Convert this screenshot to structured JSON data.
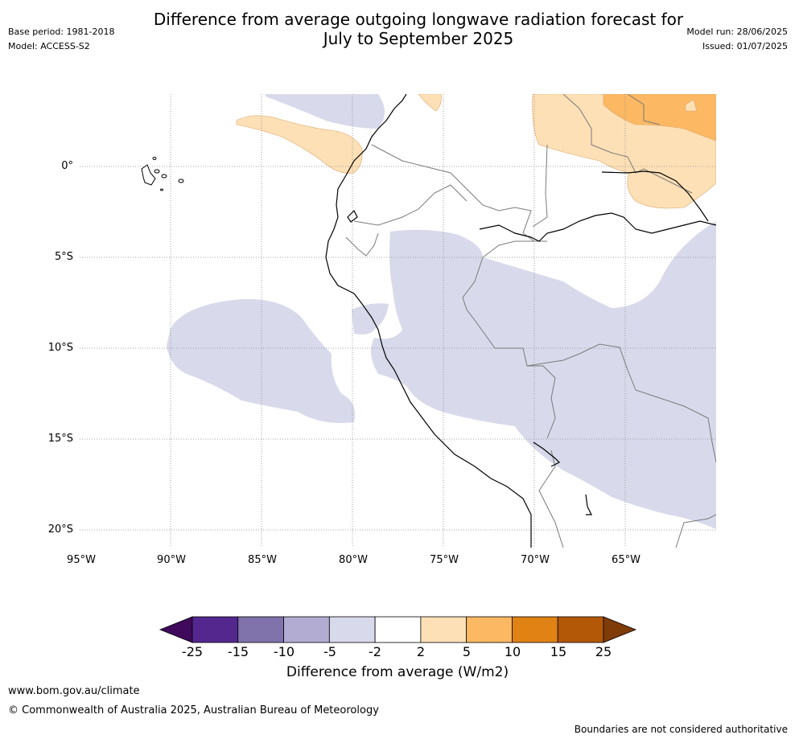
{
  "title": {
    "line1": "Difference from average outgoing longwave radiation forecast for",
    "line2": "July to September 2025"
  },
  "meta_left": {
    "base_period": "Base period: 1981-2018",
    "model": "Model: ACCESS-S2"
  },
  "meta_right": {
    "model_run": "Model run: 28/06/2025",
    "issued": "Issued: 01/07/2025"
  },
  "map": {
    "lat_labels": [
      "0°",
      "5°S",
      "10°S",
      "15°S",
      "20°S"
    ],
    "lon_labels": [
      "95°W",
      "90°W",
      "85°W",
      "80°W",
      "75°W",
      "70°W",
      "65°W"
    ]
  },
  "colorbar": {
    "ticks": [
      "-25",
      "-15",
      "-10",
      "-5",
      "-2",
      "2",
      "5",
      "10",
      "15",
      "25"
    ],
    "colors": [
      "#3f0a5b",
      "#54278f",
      "#8073ac",
      "#b2abd2",
      "#d8daeb",
      "#ffffff",
      "#fee0b6",
      "#fdb863",
      "#e08214",
      "#b35806",
      "#7f3b08"
    ],
    "label": "Difference from average (W/m2)"
  },
  "footer": {
    "url": "www.bom.gov.au/climate",
    "copyright": "© Commonwealth of Australia 2025, Australian Bureau of Meteorology",
    "disclaimer": "Boundaries are not considered authoritative"
  }
}
